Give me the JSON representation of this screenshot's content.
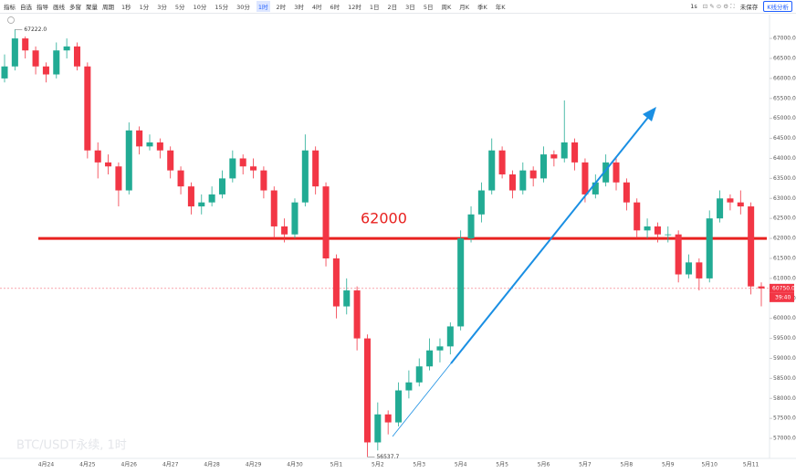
{
  "toolbar": {
    "tools": [
      "指标",
      "自选",
      "指导",
      "画线",
      "多窗",
      "聚量",
      "周期"
    ],
    "periods": [
      "1秒",
      "1分",
      "3分",
      "5分",
      "10分",
      "15分",
      "30分",
      "1时",
      "2时",
      "3时",
      "4时",
      "6时",
      "12时",
      "1日",
      "2日",
      "3日",
      "5日",
      "周K",
      "月K",
      "季K",
      "年K"
    ],
    "active_period": 7,
    "right": [
      "1s",
      "未保存"
    ],
    "button": "K线分析"
  },
  "chart_data": {
    "type": "candlestick",
    "title": "BTC/USDT永续, 1时",
    "categories": [
      null,
      null,
      null,
      null,
      "4月24",
      null,
      null,
      null,
      "4月25",
      null,
      null,
      null,
      "4月26",
      null,
      null,
      null,
      "4月27",
      null,
      null,
      null,
      "4月28",
      null,
      null,
      null,
      "4月29",
      null,
      null,
      null,
      "4月30",
      null,
      null,
      null,
      "5月1",
      null,
      null,
      null,
      "5月2",
      null,
      null,
      null,
      "5月3",
      null,
      null,
      null,
      "5月4",
      null,
      null,
      null,
      "5月5",
      null,
      null,
      null,
      "5月6",
      null,
      null,
      null,
      "5月7",
      null,
      null,
      null,
      "5月8",
      null,
      null,
      null,
      "5月9",
      null,
      null,
      null,
      "5月10",
      null,
      null,
      null,
      "5月11",
      null
    ],
    "open": [
      66000,
      66300,
      67000,
      66700,
      66300,
      66100,
      66700,
      66800,
      66300,
      64200,
      63900,
      63800,
      63200,
      64700,
      64300,
      64400,
      64200,
      63700,
      63300,
      62800,
      62900,
      63100,
      63500,
      64000,
      63800,
      63700,
      63200,
      62300,
      62100,
      62900,
      64200,
      63300,
      61500,
      60300,
      60700,
      59500,
      56900,
      57600,
      57400,
      58200,
      58400,
      58800,
      59200,
      59300,
      59800,
      62000,
      62600,
      63200,
      64200,
      63600,
      63200,
      63700,
      63500,
      64100,
      64000,
      64400,
      63900,
      63100,
      63400,
      63900,
      63400,
      62900,
      62200,
      62300,
      62100,
      62100,
      61100,
      61400,
      61000,
      62500,
      63000,
      62900,
      62800,
      60800
    ],
    "high": [
      66600,
      67222,
      67050,
      66800,
      66400,
      66900,
      67000,
      66900,
      66400,
      64400,
      64100,
      63900,
      64900,
      64800,
      64600,
      64500,
      64300,
      63800,
      63400,
      63100,
      63300,
      63700,
      64200,
      64100,
      64000,
      63800,
      63300,
      62500,
      63000,
      64600,
      64300,
      63400,
      61600,
      61000,
      60800,
      59600,
      57900,
      57700,
      58400,
      58700,
      59000,
      59500,
      59500,
      59900,
      62200,
      62800,
      63400,
      64500,
      64300,
      63700,
      63900,
      63800,
      64300,
      64200,
      65450,
      64500,
      64000,
      63600,
      64100,
      64000,
      63500,
      63000,
      62500,
      62400,
      62300,
      62200,
      61600,
      61500,
      62700,
      63200,
      63100,
      63200,
      62900,
      60900
    ],
    "low": [
      65900,
      66200,
      66500,
      66100,
      65900,
      66000,
      66500,
      66200,
      64000,
      63500,
      63600,
      62800,
      63100,
      64100,
      64200,
      64000,
      63500,
      63100,
      62600,
      62600,
      62800,
      63000,
      63400,
      63600,
      63500,
      63000,
      62000,
      61900,
      62000,
      62800,
      63100,
      61300,
      60000,
      60100,
      59200,
      56537.7,
      56700,
      57100,
      57300,
      58000,
      58300,
      58700,
      58900,
      59100,
      59700,
      61900,
      62400,
      63100,
      63500,
      63000,
      63100,
      63300,
      63400,
      63800,
      63900,
      63700,
      62900,
      63000,
      63300,
      63200,
      62700,
      62000,
      62000,
      61900,
      61900,
      60900,
      61000,
      60700,
      60900,
      62400,
      62700,
      62600,
      60600,
      60300
    ],
    "close": [
      66300,
      67000,
      66700,
      66300,
      66100,
      66700,
      66800,
      66300,
      64200,
      63900,
      63800,
      63200,
      64700,
      64300,
      64400,
      64200,
      63700,
      63300,
      62800,
      62900,
      63100,
      63500,
      64000,
      63800,
      63700,
      63200,
      62300,
      62100,
      62900,
      64200,
      63300,
      61500,
      60300,
      60700,
      59500,
      56900,
      57600,
      57400,
      58200,
      58400,
      58800,
      59200,
      59300,
      59800,
      62000,
      62600,
      63200,
      64200,
      63600,
      63200,
      63700,
      63500,
      64100,
      64000,
      64400,
      63900,
      63100,
      63400,
      63900,
      63400,
      62900,
      62200,
      62300,
      62100,
      62100,
      61100,
      61400,
      61000,
      62500,
      63000,
      62900,
      62800,
      60800,
      60750
    ],
    "up_color": "#22ab94",
    "down_color": "#f23645",
    "ylim": [
      56500,
      67550
    ],
    "yticks": [
      {
        "value": 57000,
        "label": "57000.0"
      },
      {
        "value": 57500,
        "label": "57500.0"
      },
      {
        "value": 58000,
        "label": "58000.0"
      },
      {
        "value": 58500,
        "label": "58500.0"
      },
      {
        "value": 59000,
        "label": "59000.0"
      },
      {
        "value": 59500,
        "label": "59500.0"
      },
      {
        "value": 60000,
        "label": "60000.0"
      },
      {
        "value": 60500,
        "label": "60500.0"
      },
      {
        "value": 61000,
        "label": "61000.0"
      },
      {
        "value": 61500,
        "label": "61500.0"
      },
      {
        "value": 62000,
        "label": "62000.0"
      },
      {
        "value": 62500,
        "label": "62500.0"
      },
      {
        "value": 63000,
        "label": "63000.0"
      },
      {
        "value": 63500,
        "label": "63500.0"
      },
      {
        "value": 64000,
        "label": "64000.0"
      },
      {
        "value": 64500,
        "label": "64500.0"
      },
      {
        "value": 65000,
        "label": "65000.0"
      },
      {
        "value": 65500,
        "label": "65500.0"
      },
      {
        "value": 66000,
        "label": "66000.0"
      },
      {
        "value": 66500,
        "label": "66500.0"
      },
      {
        "value": 67000,
        "label": "67000.0"
      }
    ],
    "grid": false,
    "hline": 62000,
    "hline_color": "#e8211f",
    "high_mark": {
      "value": 67222,
      "label": "67222.0"
    },
    "low_mark": {
      "value": 56537.7,
      "label": "56537.7"
    },
    "last_price": {
      "value": 60750,
      "label": "60750.0"
    },
    "countdown": "39:40"
  }
}
